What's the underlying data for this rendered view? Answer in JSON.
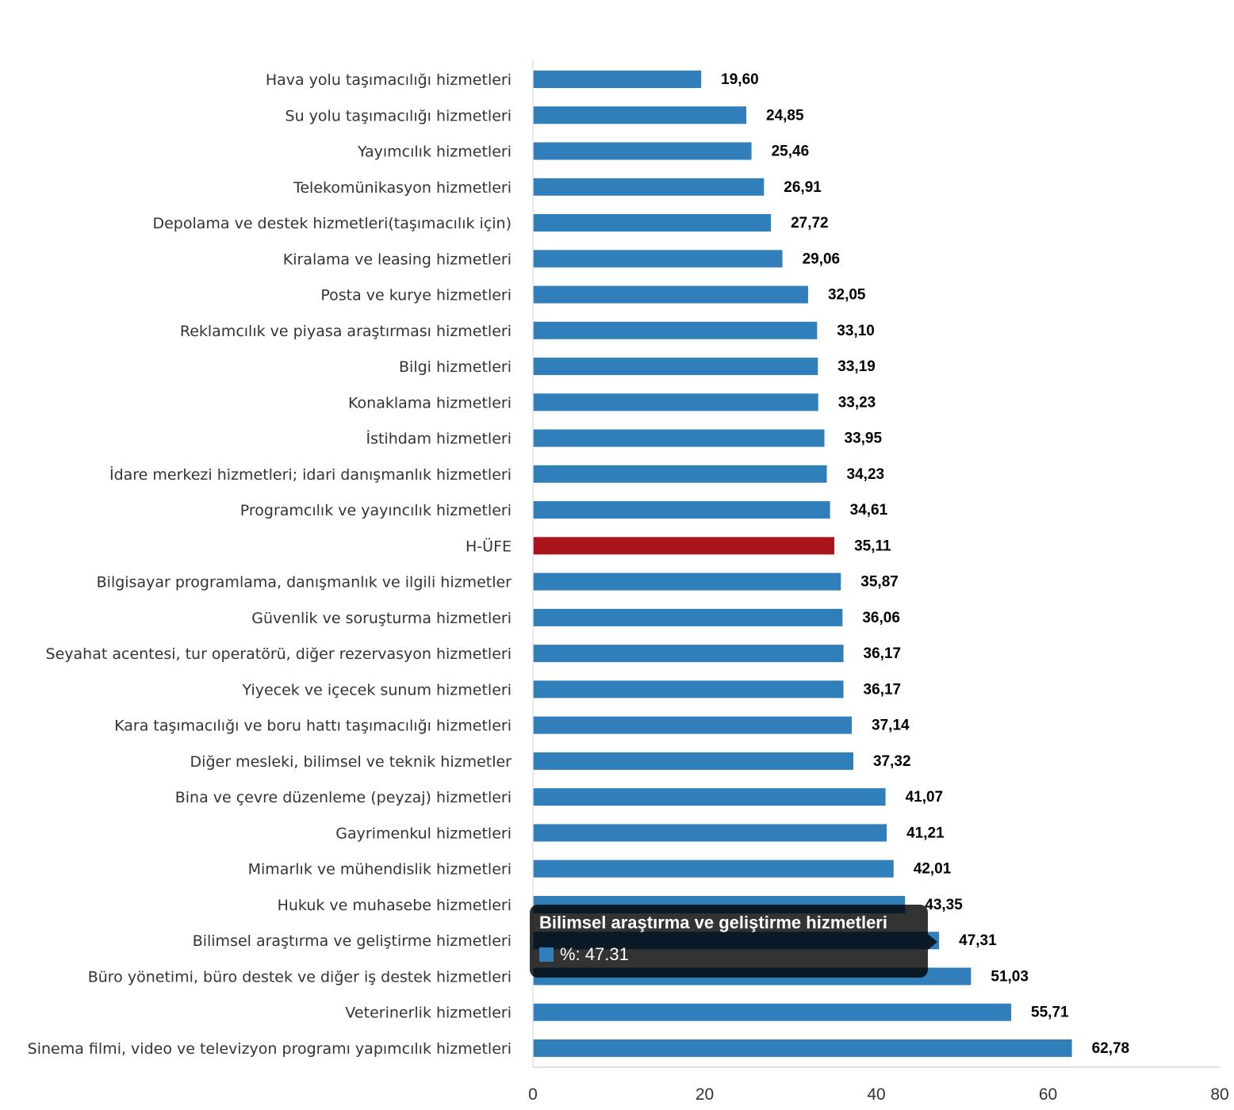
{
  "chart_data": {
    "type": "bar",
    "orientation": "horizontal",
    "categories": [
      "Hava yolu taşımacılığı hizmetleri",
      "Su yolu taşımacılığı hizmetleri",
      "Yayımcılık hizmetleri",
      "Telekomünikasyon hizmetleri",
      "Depolama ve destek hizmetleri(taşımacılık için)",
      "Kiralama ve leasing hizmetleri",
      "Posta ve kurye hizmetleri",
      "Reklamcılık ve piyasa araştırması hizmetleri",
      "Bilgi hizmetleri",
      "Konaklama hizmetleri",
      "İstihdam hizmetleri",
      "İdare merkezi hizmetleri; idari danışmanlık hizmetleri",
      "Programcılık ve yayıncılık hizmetleri",
      "H-ÜFE",
      "Bilgisayar programlama, danışmanlık ve ilgili hizmetler",
      "Güvenlik ve soruşturma hizmetleri",
      "Seyahat acentesi, tur operatörü, diğer rezervasyon hizmetleri",
      "Yiyecek ve içecek sunum hizmetleri",
      "Kara taşımacılığı ve boru hattı taşımacılığı hizmetleri",
      "Diğer mesleki, bilimsel ve teknik hizmetler",
      "Bina ve çevre düzenleme (peyzaj) hizmetleri",
      "Gayrimenkul hizmetleri",
      "Mimarlık ve mühendislik hizmetleri",
      "Hukuk ve muhasebe hizmetleri",
      "Bilimsel araştırma ve geliştirme hizmetleri",
      "Büro yönetimi, büro destek ve diğer iş destek hizmetleri",
      "Veterinerlik hizmetleri",
      "Sinema filmi, video ve televizyon programı yapımcılık hizmetleri"
    ],
    "values": [
      19.6,
      24.85,
      25.46,
      26.91,
      27.72,
      29.06,
      32.05,
      33.1,
      33.19,
      33.23,
      33.95,
      34.23,
      34.61,
      35.11,
      35.87,
      36.06,
      36.17,
      36.17,
      37.14,
      37.32,
      41.07,
      41.21,
      42.01,
      43.35,
      47.31,
      51.03,
      55.71,
      62.78
    ],
    "value_labels": [
      "19,60",
      "24,85",
      "25,46",
      "26,91",
      "27,72",
      "29,06",
      "32,05",
      "33,10",
      "33,19",
      "33,23",
      "33,95",
      "34,23",
      "34,61",
      "35,11",
      "35,87",
      "36,06",
      "36,17",
      "36,17",
      "37,14",
      "37,32",
      "41,07",
      "41,21",
      "42,01",
      "43,35",
      "47,31",
      "51,03",
      "55,71",
      "62,78"
    ],
    "highlight_category": "H-ÜFE",
    "xlim": [
      0,
      80
    ],
    "xticks": [
      "0",
      "20",
      "40",
      "60",
      "80"
    ],
    "grid": false,
    "colors": {
      "bar": "#307fba",
      "highlight": "#a8141a"
    },
    "tooltip": {
      "title": "Bilimsel araştırma ve geliştirme hizmetleri",
      "series_label": "%: 47.31"
    }
  }
}
